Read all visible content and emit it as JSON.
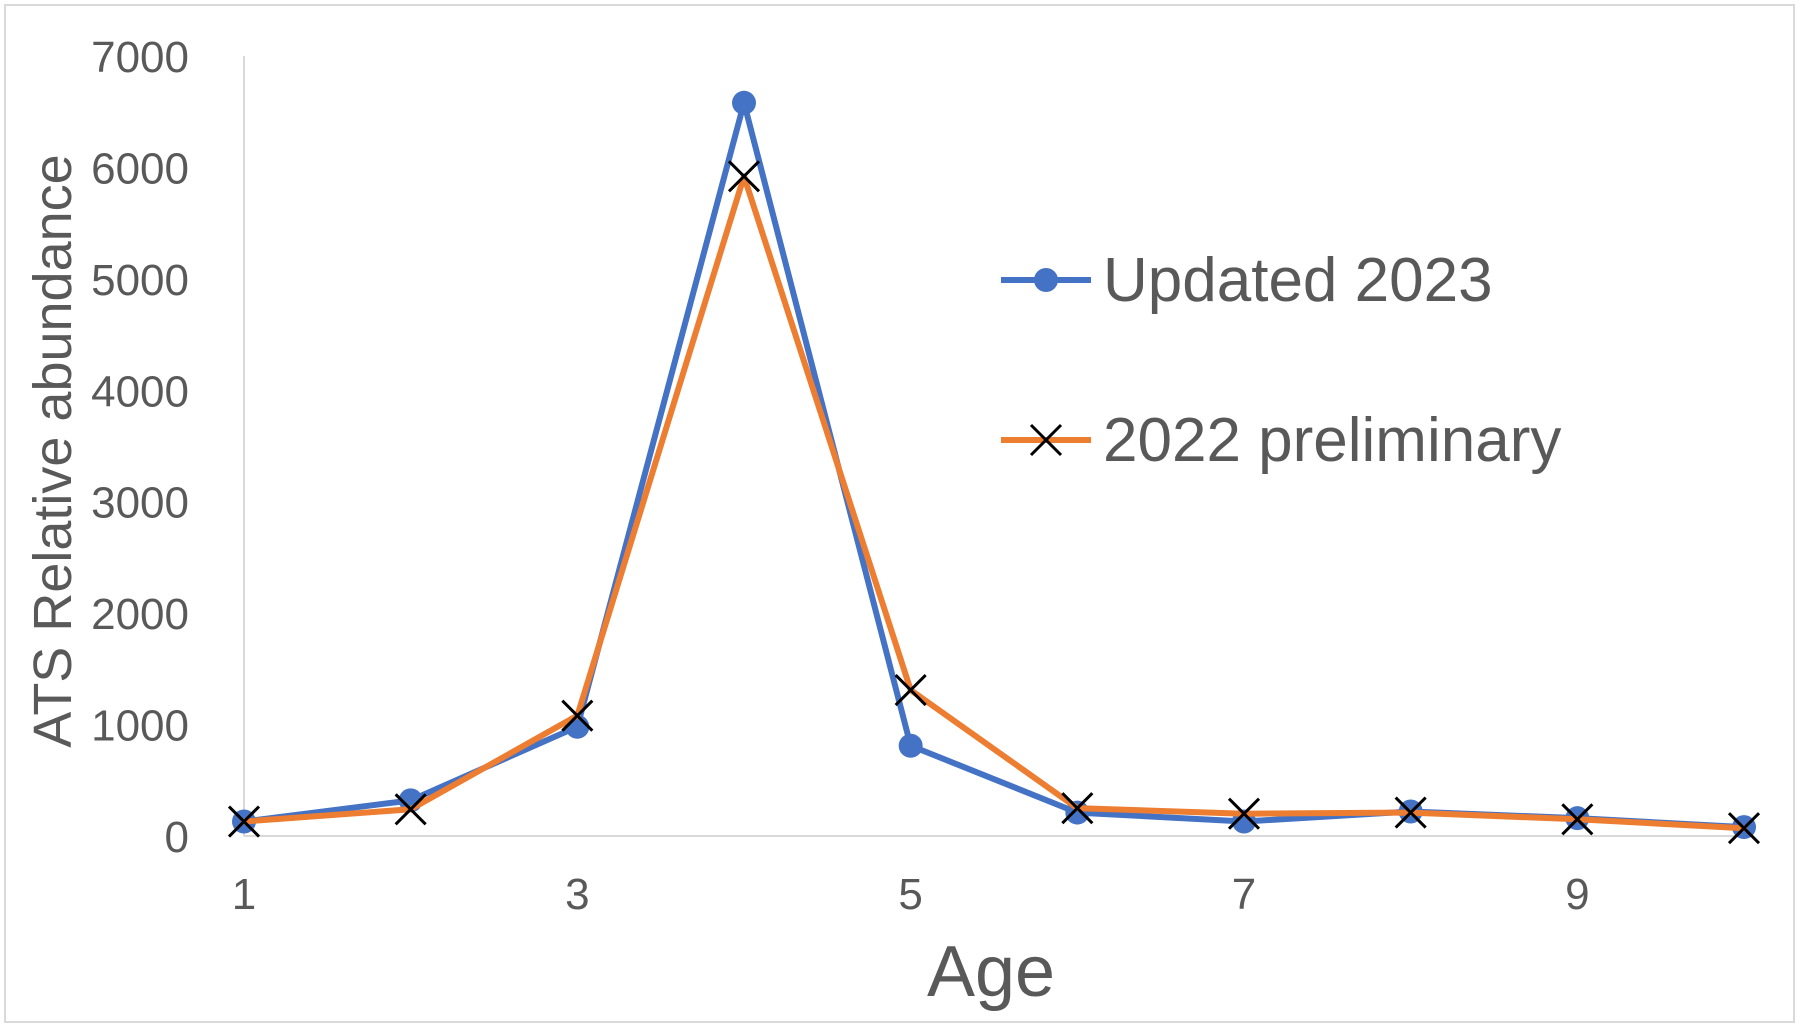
{
  "chart_data": {
    "type": "line",
    "title": "",
    "xlabel": "Age",
    "ylabel": "ATS Relative abundance",
    "x": [
      1,
      2,
      3,
      4,
      5,
      6,
      7,
      8,
      9,
      10
    ],
    "x_tick_labels": [
      "1",
      "3",
      "5",
      "7",
      "9"
    ],
    "x_tick_values": [
      1,
      3,
      5,
      7,
      9
    ],
    "xlim": [
      1,
      10
    ],
    "ylim": [
      0,
      7000
    ],
    "y_tick_labels": [
      "0",
      "1000",
      "2000",
      "3000",
      "4000",
      "5000",
      "6000",
      "7000"
    ],
    "y_tick_values": [
      0,
      1000,
      2000,
      3000,
      4000,
      5000,
      6000,
      7000
    ],
    "grid": false,
    "legend_position": "right",
    "series": [
      {
        "name": "Updated 2023",
        "color": "#4472C4",
        "marker": "circle",
        "values": [
          130,
          320,
          980,
          6580,
          810,
          210,
          130,
          220,
          160,
          80
        ]
      },
      {
        "name": "2022 preliminary",
        "color": "#ED7D31",
        "marker": "x",
        "marker_color": "#000000",
        "values": [
          130,
          240,
          1080,
          5920,
          1310,
          250,
          200,
          210,
          150,
          70
        ]
      }
    ]
  }
}
